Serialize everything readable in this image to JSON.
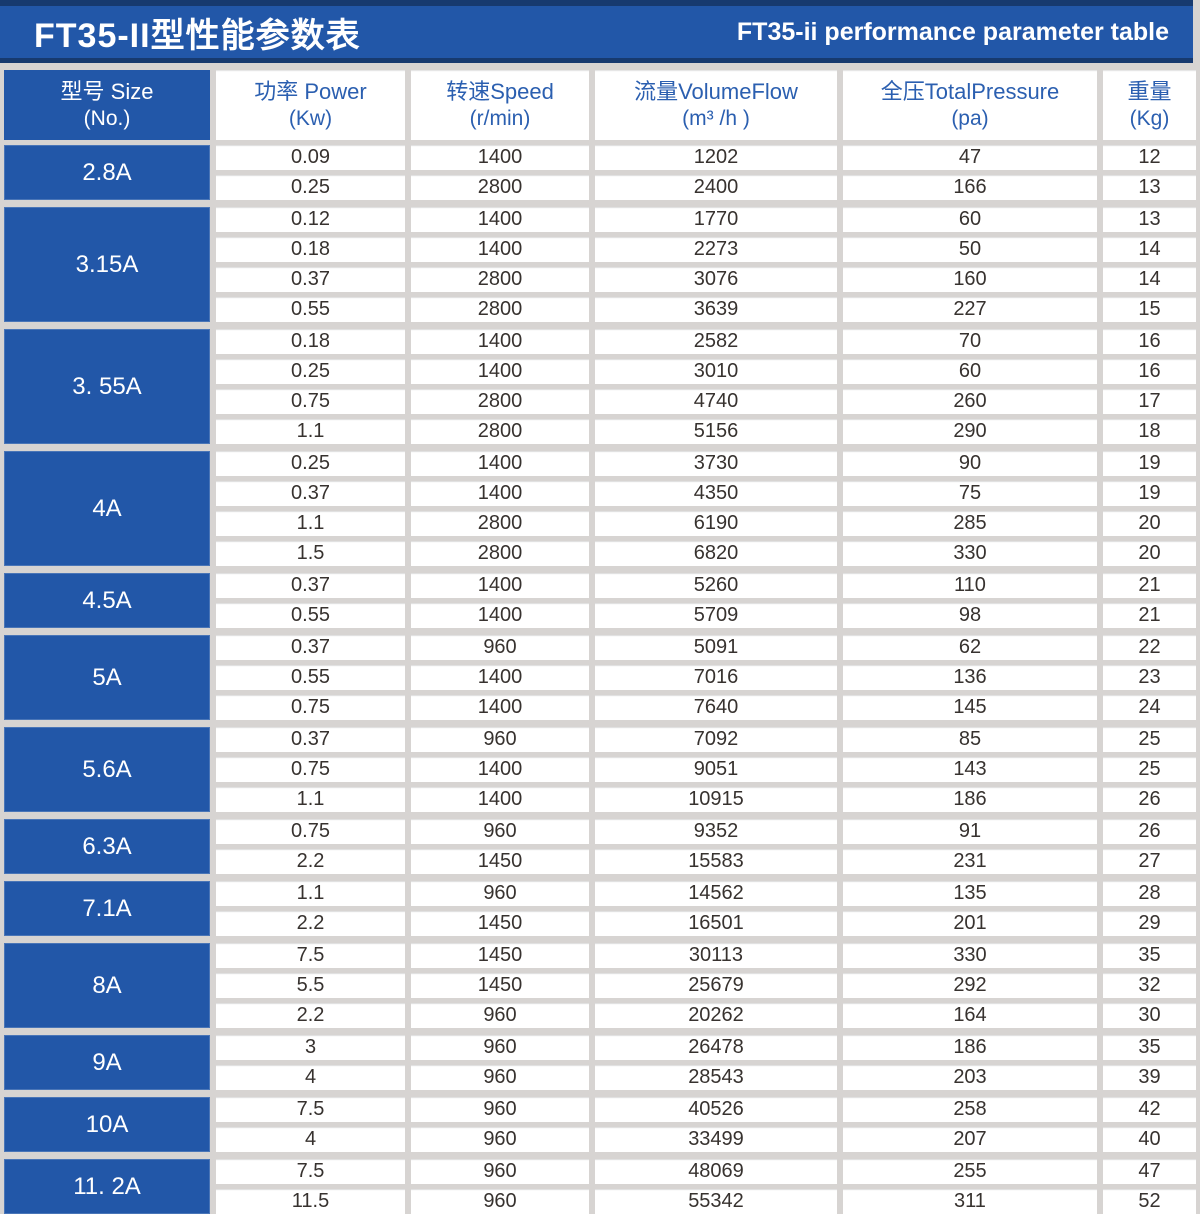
{
  "title": {
    "cn": "FT35-II型性能参数表",
    "en": "FT35-ii performance parameter table"
  },
  "columns": [
    {
      "line1": "型号 Size",
      "line2": "(No.)"
    },
    {
      "line1": "功率 Power",
      "line2": "(Kw)"
    },
    {
      "line1": "转速Speed",
      "line2": "(r/min)"
    },
    {
      "line1": "流量VolumeFlow",
      "line2": "(m³ /h )"
    },
    {
      "line1": "全压TotalPressure",
      "line2": "(pa)"
    },
    {
      "line1": "重量",
      "line2": "(Kg)"
    }
  ],
  "colors": {
    "primary_blue": "#2257a8",
    "dark_navy": "#173a6f",
    "header_text_blue": "#2b5fb0",
    "body_text": "#37322f",
    "background_gray": "#d7d4d2",
    "cell_white": "#ffffff"
  },
  "groups": [
    {
      "size": "2.8A",
      "rows": [
        [
          "0.09",
          "1400",
          "1202",
          "47",
          "12"
        ],
        [
          "0.25",
          "2800",
          "2400",
          "166",
          "13"
        ]
      ]
    },
    {
      "size": "3.15A",
      "rows": [
        [
          "0.12",
          "1400",
          "1770",
          "60",
          "13"
        ],
        [
          "0.18",
          "1400",
          "2273",
          "50",
          "14"
        ],
        [
          "0.37",
          "2800",
          "3076",
          "160",
          "14"
        ],
        [
          "0.55",
          "2800",
          "3639",
          "227",
          "15"
        ]
      ]
    },
    {
      "size": "3. 55A",
      "rows": [
        [
          "0.18",
          "1400",
          "2582",
          "70",
          "16"
        ],
        [
          "0.25",
          "1400",
          "3010",
          "60",
          "16"
        ],
        [
          "0.75",
          "2800",
          "4740",
          "260",
          "17"
        ],
        [
          "1.1",
          "2800",
          "5156",
          "290",
          "18"
        ]
      ]
    },
    {
      "size": "4A",
      "rows": [
        [
          "0.25",
          "1400",
          "3730",
          "90",
          "19"
        ],
        [
          "0.37",
          "1400",
          "4350",
          "75",
          "19"
        ],
        [
          "1.1",
          "2800",
          "6190",
          "285",
          "20"
        ],
        [
          "1.5",
          "2800",
          "6820",
          "330",
          "20"
        ]
      ]
    },
    {
      "size": "4.5A",
      "rows": [
        [
          "0.37",
          "1400",
          "5260",
          "110",
          "21"
        ],
        [
          "0.55",
          "1400",
          "5709",
          "98",
          "21"
        ]
      ]
    },
    {
      "size": "5A",
      "rows": [
        [
          "0.37",
          "960",
          "5091",
          "62",
          "22"
        ],
        [
          "0.55",
          "1400",
          "7016",
          "136",
          "23"
        ],
        [
          "0.75",
          "1400",
          "7640",
          "145",
          "24"
        ]
      ]
    },
    {
      "size": "5.6A",
      "rows": [
        [
          "0.37",
          "960",
          "7092",
          "85",
          "25"
        ],
        [
          "0.75",
          "1400",
          "9051",
          "143",
          "25"
        ],
        [
          "1.1",
          "1400",
          "10915",
          "186",
          "26"
        ]
      ]
    },
    {
      "size": "6.3A",
      "rows": [
        [
          "0.75",
          "960",
          "9352",
          "91",
          "26"
        ],
        [
          "2.2",
          "1450",
          "15583",
          "231",
          "27"
        ]
      ]
    },
    {
      "size": "7.1A",
      "rows": [
        [
          "1.1",
          "960",
          "14562",
          "135",
          "28"
        ],
        [
          "2.2",
          "1450",
          "16501",
          "201",
          "29"
        ]
      ]
    },
    {
      "size": "8A",
      "rows": [
        [
          "7.5",
          "1450",
          "30113",
          "330",
          "35"
        ],
        [
          "5.5",
          "1450",
          "25679",
          "292",
          "32"
        ],
        [
          "2.2",
          "960",
          "20262",
          "164",
          "30"
        ]
      ]
    },
    {
      "size": "9A",
      "rows": [
        [
          "3",
          "960",
          "26478",
          "186",
          "35"
        ],
        [
          "4",
          "960",
          "28543",
          "203",
          "39"
        ]
      ]
    },
    {
      "size": "10A",
      "rows": [
        [
          "7.5",
          "960",
          "40526",
          "258",
          "42"
        ],
        [
          "4",
          "960",
          "33499",
          "207",
          "40"
        ]
      ]
    },
    {
      "size": "11. 2A",
      "rows": [
        [
          "7.5",
          "960",
          "48069",
          "255",
          "47"
        ],
        [
          "11.5",
          "960",
          "55342",
          "311",
          "52"
        ]
      ]
    }
  ]
}
